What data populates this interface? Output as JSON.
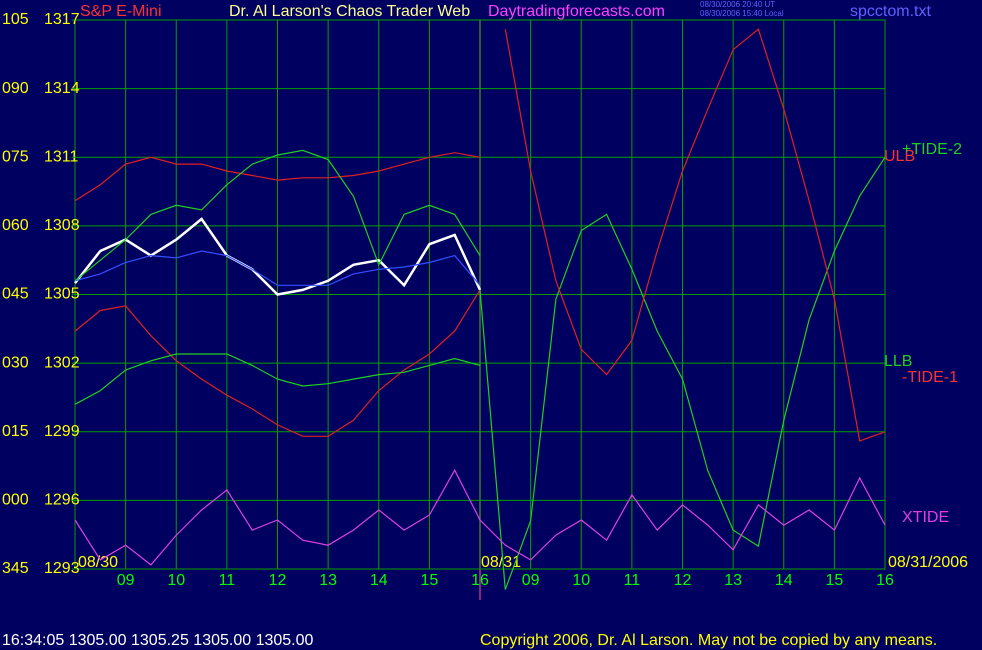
{
  "chart_data": {
    "type": "line",
    "title": "Dr. Al Larson's Chaos Trader Web",
    "subtitle": "S&P E-Mini",
    "annotations": [
      "Daytradingforecasts.com",
      "08/30/2006 20:40 UT",
      "08/30/2006 15:40 Local",
      "spcctom.txt",
      "ULB",
      "LLB",
      "08/30",
      "08/31",
      "08/31/2006",
      "16:34:05  1305.00 1305.25 1305.00 1305.00",
      "Copyright 2006, Dr. Al Larson. May not be copied by any means."
    ],
    "x": [
      -1,
      -0.5,
      0,
      0.5,
      1,
      1.5,
      2,
      2.5,
      3,
      3.5,
      4,
      4.5,
      5,
      5.5,
      6,
      6.5,
      7,
      7.5,
      8,
      8.5,
      9,
      9.5,
      10,
      10.5,
      11,
      11.5,
      12,
      12.5,
      13,
      13.5,
      14,
      14.5,
      15
    ],
    "xlim": [
      -1,
      15
    ],
    "xticks": [
      {
        "value": 0,
        "label": "09"
      },
      {
        "value": 1,
        "label": "10"
      },
      {
        "value": 2,
        "label": "11"
      },
      {
        "value": 3,
        "label": "12"
      },
      {
        "value": 4,
        "label": "13"
      },
      {
        "value": 5,
        "label": "14"
      },
      {
        "value": 6,
        "label": "15"
      },
      {
        "value": 7,
        "label": "16"
      },
      {
        "value": 8,
        "label": "09"
      },
      {
        "value": 9,
        "label": "10"
      },
      {
        "value": 10,
        "label": "11"
      },
      {
        "value": 11,
        "label": "12"
      },
      {
        "value": 12,
        "label": "13"
      },
      {
        "value": 13,
        "label": "14"
      },
      {
        "value": 14,
        "label": "15"
      },
      {
        "value": 15,
        "label": "16"
      }
    ],
    "ylim": [
      1293,
      1317
    ],
    "yticks": [
      1293,
      1296,
      1299,
      1302,
      1305,
      1308,
      1311,
      1314,
      1317
    ],
    "y2lim": [
      -15,
      105
    ],
    "y2ticks": [
      {
        "value": -15,
        "label": "345"
      },
      {
        "value": 0,
        "label": "000"
      },
      {
        "value": 15,
        "label": "015"
      },
      {
        "value": 30,
        "label": "030"
      },
      {
        "value": 45,
        "label": "045"
      },
      {
        "value": 60,
        "label": "060"
      },
      {
        "value": 75,
        "label": "075"
      },
      {
        "value": 90,
        "label": "090"
      },
      105
    ],
    "grid": true,
    "series": [
      {
        "color": "#ffffff",
        "values": [
          1305.5,
          1306.9,
          1307.4,
          1306.7,
          1307.4,
          1308.3,
          1306.7,
          1306.1,
          1305.0,
          1305.2,
          1305.6,
          1306.3,
          1306.5,
          1305.4,
          1307.2,
          1307.6,
          1305.2,
          null,
          null,
          null,
          null,
          null,
          null,
          null,
          null,
          null,
          null,
          null,
          null,
          null,
          null,
          null,
          null
        ]
      },
      {
        "color": "#3050ff",
        "values": [
          1305.6,
          1305.9,
          1306.4,
          1306.7,
          1306.6,
          1306.9,
          1306.7,
          1306.1,
          1305.4,
          1305.4,
          1305.4,
          1305.9,
          1306.1,
          1306.2,
          1306.4,
          1306.7,
          1305.4,
          null,
          null,
          null,
          null,
          null,
          null,
          null,
          null,
          null,
          null,
          null,
          null,
          null,
          null,
          null,
          null
        ]
      },
      {
        "color": "#e02020",
        "values": [
          1309.1,
          1309.8,
          1310.7,
          1311.0,
          1310.7,
          1310.7,
          1310.4,
          1310.2,
          1310.0,
          1310.1,
          1310.1,
          1310.2,
          1310.4,
          1310.7,
          1311.0,
          1311.2,
          1311.0,
          null,
          null,
          null,
          null,
          null,
          null,
          null,
          null,
          null,
          null,
          null,
          null,
          null,
          null,
          null,
          null
        ]
      },
      {
        "color": "#e02020",
        "values": [
          1303.4,
          1304.3,
          1304.5,
          1303.2,
          1302.1,
          1301.3,
          1300.6,
          1300.0,
          1299.3,
          1298.8,
          1298.8,
          1299.5,
          1300.8,
          1301.7,
          1302.4,
          1303.4,
          1305.2,
          null,
          null,
          null,
          null,
          null,
          null,
          null,
          null,
          null,
          null,
          null,
          null,
          null,
          null,
          null,
          null
        ]
      },
      {
        "color": "#20d020",
        "values": [
          1305.6,
          1306.5,
          1307.4,
          1308.5,
          1308.9,
          1308.7,
          1309.8,
          1310.7,
          1311.1,
          1311.3,
          1310.9,
          1309.3,
          1306.3,
          1308.5,
          1308.9,
          1308.5,
          1306.7,
          null,
          null,
          null,
          null,
          null,
          null,
          null,
          null,
          null,
          null,
          null,
          null,
          null,
          null,
          null,
          null
        ]
      },
      {
        "color": "#20d020",
        "values": [
          1300.2,
          1300.8,
          1301.7,
          1302.1,
          1302.4,
          1302.4,
          1302.4,
          1301.9,
          1301.3,
          1301.0,
          1301.1,
          1301.3,
          1301.5,
          1301.6,
          1301.9,
          1302.2,
          1301.9,
          null,
          null,
          null,
          null,
          null,
          null,
          null,
          null,
          null,
          null,
          null,
          null,
          null,
          null,
          null,
          null
        ]
      },
      {
        "name": "+TIDE-2",
        "color": "#20d020",
        "values": [
          null,
          null,
          null,
          null,
          null,
          null,
          null,
          null,
          null,
          null,
          null,
          null,
          null,
          null,
          null,
          null,
          1305.2,
          1292.1,
          1295.1,
          1304.8,
          1307.8,
          1308.5,
          1306.1,
          1303.4,
          1301.3,
          1297.3,
          1294.7,
          1294.0,
          1299.5,
          1303.9,
          1306.9,
          1309.3,
          1311.0
        ]
      },
      {
        "name": "-TIDE-1",
        "color": "#e02020",
        "values": [
          null,
          null,
          null,
          null,
          null,
          null,
          null,
          null,
          null,
          null,
          null,
          null,
          null,
          null,
          null,
          null,
          null,
          1316.6,
          1310.4,
          1305.6,
          1302.6,
          1301.5,
          1303.0,
          1306.9,
          1310.4,
          1313.1,
          1315.7,
          1316.6,
          1313.1,
          1309.1,
          1304.8,
          1298.6,
          1299.0
        ]
      },
      {
        "name": "XTIDE",
        "color": "#e040e0",
        "axis": "y2",
        "values": [
          -4.3,
          -13.0,
          -9.8,
          -14.1,
          -7.6,
          -2.1,
          2.3,
          -6.5,
          -4.3,
          -8.7,
          -9.8,
          -6.5,
          -2.1,
          -6.5,
          -3.2,
          6.6,
          -4.3,
          -9.8,
          -13.0,
          -7.6,
          -4.3,
          -8.7,
          1.2,
          -6.5,
          -1.0,
          -5.4,
          -10.8,
          -1.0,
          -5.4,
          -2.1,
          -6.5,
          4.9,
          -5.4
        ]
      }
    ]
  }
}
